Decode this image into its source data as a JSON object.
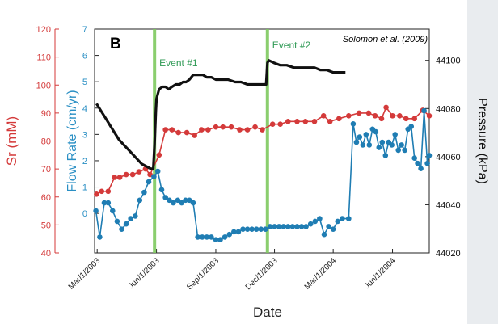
{
  "chart_data": {
    "type": "line",
    "panel_label": "B",
    "citation": "Solomon et al. (2009)",
    "xlabel": "Date",
    "x_ticks": [
      "Mar/1/2003",
      "Jun/1/2003",
      "Sep/1/2003",
      "Dec/1/2003",
      "Mar/1/2004",
      "Jun/1/2004"
    ],
    "xlim": [
      "2003-02-25",
      "2004-07-28"
    ],
    "axes": {
      "sr": {
        "label": "Sr (mM)",
        "ticks": [
          "40",
          "50",
          "60",
          "70",
          "80",
          "90",
          "100",
          "110",
          "120"
        ],
        "range": [
          40,
          120
        ],
        "color": "#d43a3a"
      },
      "flow": {
        "label": "Flow Rate (cm/yr)",
        "ticks": [
          "0",
          "1",
          "2",
          "3",
          "4",
          "5",
          "6",
          "7"
        ],
        "range": [
          -1.5,
          7
        ],
        "color": "#2a8fc4"
      },
      "pressure": {
        "label": "Pressure (kPa)",
        "ticks": [
          "44020",
          "44040",
          "44060",
          "44080",
          "44100"
        ],
        "range": [
          44020,
          44113
        ],
        "color": "#111111"
      }
    },
    "events": [
      {
        "label": "Event #1",
        "date": "2003-05-29",
        "color": "#7dc95e"
      },
      {
        "label": "Event #2",
        "date": "2003-11-20",
        "color": "#7dc95e"
      }
    ],
    "series": [
      {
        "name": "Sr",
        "axis": "sr",
        "color": "#d43a3a",
        "markers": true,
        "points": [
          [
            "2003-02-28",
            61
          ],
          [
            "2003-03-08",
            62
          ],
          [
            "2003-03-18",
            62
          ],
          [
            "2003-03-28",
            67
          ],
          [
            "2003-04-05",
            67
          ],
          [
            "2003-04-15",
            68
          ],
          [
            "2003-04-25",
            68
          ],
          [
            "2003-05-05",
            69
          ],
          [
            "2003-05-15",
            70
          ],
          [
            "2003-05-22",
            68
          ],
          [
            "2003-06-05",
            75
          ],
          [
            "2003-06-15",
            84
          ],
          [
            "2003-06-25",
            84
          ],
          [
            "2003-07-05",
            83
          ],
          [
            "2003-07-18",
            83
          ],
          [
            "2003-07-30",
            82
          ],
          [
            "2003-08-10",
            84
          ],
          [
            "2003-08-20",
            84
          ],
          [
            "2003-09-01",
            85
          ],
          [
            "2003-09-12",
            85
          ],
          [
            "2003-09-25",
            85
          ],
          [
            "2003-10-08",
            84
          ],
          [
            "2003-10-20",
            84
          ],
          [
            "2003-11-01",
            85
          ],
          [
            "2003-11-12",
            84
          ],
          [
            "2003-11-28",
            86
          ],
          [
            "2003-12-10",
            86
          ],
          [
            "2003-12-22",
            87
          ],
          [
            "2004-01-05",
            87
          ],
          [
            "2004-01-18",
            87
          ],
          [
            "2004-02-01",
            87
          ],
          [
            "2004-02-15",
            89
          ],
          [
            "2004-02-25",
            87
          ],
          [
            "2004-03-10",
            88
          ],
          [
            "2004-03-25",
            89
          ],
          [
            "2004-04-10",
            90
          ],
          [
            "2004-04-25",
            90
          ],
          [
            "2004-05-05",
            89
          ],
          [
            "2004-05-15",
            88
          ],
          [
            "2004-05-22",
            92
          ],
          [
            "2004-06-01",
            89
          ],
          [
            "2004-06-12",
            89
          ],
          [
            "2004-06-22",
            88
          ],
          [
            "2004-07-05",
            88
          ],
          [
            "2004-07-18",
            91
          ],
          [
            "2004-07-28",
            89
          ]
        ]
      },
      {
        "name": "Flow Rate",
        "axis": "flow",
        "color": "#1f7db3",
        "markers": true,
        "points": [
          [
            "2003-02-27",
            0.1
          ],
          [
            "2003-03-05",
            -0.9
          ],
          [
            "2003-03-12",
            0.4
          ],
          [
            "2003-03-18",
            0.4
          ],
          [
            "2003-03-25",
            0.1
          ],
          [
            "2003-04-01",
            -0.3
          ],
          [
            "2003-04-08",
            -0.6
          ],
          [
            "2003-04-15",
            -0.4
          ],
          [
            "2003-04-22",
            -0.2
          ],
          [
            "2003-04-29",
            -0.1
          ],
          [
            "2003-05-06",
            0.5
          ],
          [
            "2003-05-13",
            0.8
          ],
          [
            "2003-05-20",
            1.2
          ],
          [
            "2003-05-28",
            1.4
          ],
          [
            "2003-06-03",
            1.6
          ],
          [
            "2003-06-09",
            0.9
          ],
          [
            "2003-06-15",
            0.6
          ],
          [
            "2003-06-21",
            0.5
          ],
          [
            "2003-06-27",
            0.4
          ],
          [
            "2003-07-04",
            0.5
          ],
          [
            "2003-07-10",
            0.4
          ],
          [
            "2003-07-16",
            0.5
          ],
          [
            "2003-07-22",
            0.5
          ],
          [
            "2003-07-28",
            0.4
          ],
          [
            "2003-08-04",
            -0.9
          ],
          [
            "2003-08-11",
            -0.9
          ],
          [
            "2003-08-18",
            -0.9
          ],
          [
            "2003-08-25",
            -0.9
          ],
          [
            "2003-09-01",
            -1.0
          ],
          [
            "2003-09-08",
            -1.0
          ],
          [
            "2003-09-15",
            -0.9
          ],
          [
            "2003-09-22",
            -0.8
          ],
          [
            "2003-09-29",
            -0.7
          ],
          [
            "2003-10-06",
            -0.7
          ],
          [
            "2003-10-13",
            -0.6
          ],
          [
            "2003-10-20",
            -0.6
          ],
          [
            "2003-10-27",
            -0.6
          ],
          [
            "2003-11-03",
            -0.6
          ],
          [
            "2003-11-10",
            -0.6
          ],
          [
            "2003-11-17",
            -0.6
          ],
          [
            "2003-11-24",
            -0.5
          ],
          [
            "2003-12-01",
            -0.5
          ],
          [
            "2003-12-08",
            -0.5
          ],
          [
            "2003-12-15",
            -0.5
          ],
          [
            "2003-12-22",
            -0.5
          ],
          [
            "2003-12-29",
            -0.5
          ],
          [
            "2004-01-05",
            -0.5
          ],
          [
            "2004-01-12",
            -0.5
          ],
          [
            "2004-01-19",
            -0.5
          ],
          [
            "2004-01-26",
            -0.4
          ],
          [
            "2004-02-02",
            -0.3
          ],
          [
            "2004-02-09",
            -0.2
          ],
          [
            "2004-02-16",
            -0.8
          ],
          [
            "2004-02-23",
            -0.5
          ],
          [
            "2004-03-01",
            -0.6
          ],
          [
            "2004-03-08",
            -0.3
          ],
          [
            "2004-03-15",
            -0.2
          ],
          [
            "2004-03-25",
            -0.2
          ],
          [
            "2004-04-01",
            3.4
          ],
          [
            "2004-04-06",
            2.7
          ],
          [
            "2004-04-11",
            2.9
          ],
          [
            "2004-04-16",
            2.6
          ],
          [
            "2004-04-21",
            3.0
          ],
          [
            "2004-04-26",
            2.6
          ],
          [
            "2004-05-01",
            3.2
          ],
          [
            "2004-05-06",
            3.1
          ],
          [
            "2004-05-11",
            2.5
          ],
          [
            "2004-05-16",
            2.7
          ],
          [
            "2004-05-21",
            2.2
          ],
          [
            "2004-05-26",
            2.7
          ],
          [
            "2004-05-31",
            2.6
          ],
          [
            "2004-06-05",
            3.0
          ],
          [
            "2004-06-10",
            2.4
          ],
          [
            "2004-06-15",
            2.6
          ],
          [
            "2004-06-20",
            2.4
          ],
          [
            "2004-06-25",
            3.2
          ],
          [
            "2004-06-30",
            3.3
          ],
          [
            "2004-07-05",
            2.1
          ],
          [
            "2004-07-10",
            1.9
          ],
          [
            "2004-07-15",
            1.7
          ],
          [
            "2004-07-20",
            3.9
          ],
          [
            "2004-07-25",
            1.9
          ],
          [
            "2004-07-28",
            2.2
          ]
        ]
      },
      {
        "name": "Pressure",
        "axis": "pressure",
        "color": "#111111",
        "markers": false,
        "points": [
          [
            "2003-02-28",
            44082
          ],
          [
            "2003-03-07",
            44079
          ],
          [
            "2003-03-14",
            44076
          ],
          [
            "2003-03-21",
            44073
          ],
          [
            "2003-03-28",
            44070
          ],
          [
            "2003-04-04",
            44067
          ],
          [
            "2003-04-11",
            44065
          ],
          [
            "2003-04-18",
            44063
          ],
          [
            "2003-04-25",
            44061
          ],
          [
            "2003-05-02",
            44059
          ],
          [
            "2003-05-09",
            44057
          ],
          [
            "2003-05-16",
            44056
          ],
          [
            "2003-05-23",
            44055
          ],
          [
            "2003-05-27",
            44055
          ],
          [
            "2003-05-28",
            44060
          ],
          [
            "2003-05-29",
            44065
          ],
          [
            "2003-05-30",
            44072
          ],
          [
            "2003-05-31",
            44079
          ],
          [
            "2003-06-01",
            44084
          ],
          [
            "2003-06-04",
            44087
          ],
          [
            "2003-06-05",
            44088
          ],
          [
            "2003-06-10",
            44089
          ],
          [
            "2003-06-15",
            44089
          ],
          [
            "2003-06-20",
            44088
          ],
          [
            "2003-06-25",
            44089
          ],
          [
            "2003-07-01",
            44090
          ],
          [
            "2003-07-07",
            44090
          ],
          [
            "2003-07-12",
            44091
          ],
          [
            "2003-07-17",
            44091
          ],
          [
            "2003-07-22",
            44092
          ],
          [
            "2003-07-28",
            44094
          ],
          [
            "2003-08-05",
            44094
          ],
          [
            "2003-08-12",
            44094
          ],
          [
            "2003-08-18",
            44093
          ],
          [
            "2003-08-25",
            44093
          ],
          [
            "2003-09-01",
            44092
          ],
          [
            "2003-09-10",
            44092
          ],
          [
            "2003-09-20",
            44092
          ],
          [
            "2003-10-01",
            44091
          ],
          [
            "2003-10-10",
            44091
          ],
          [
            "2003-10-20",
            44090
          ],
          [
            "2003-11-01",
            44090
          ],
          [
            "2003-11-10",
            44090
          ],
          [
            "2003-11-18",
            44090
          ],
          [
            "2003-11-20",
            44099
          ],
          [
            "2003-11-22",
            44100
          ],
          [
            "2003-11-30",
            44099
          ],
          [
            "2003-12-10",
            44098
          ],
          [
            "2003-12-20",
            44098
          ],
          [
            "2003-12-31",
            44097
          ],
          [
            "2004-01-10",
            44097
          ],
          [
            "2004-01-20",
            44097
          ],
          [
            "2004-02-01",
            44097
          ],
          [
            "2004-02-10",
            44096
          ],
          [
            "2004-02-20",
            44096
          ],
          [
            "2004-03-01",
            44095
          ],
          [
            "2004-03-10",
            44095
          ],
          [
            "2004-03-20",
            44095
          ]
        ]
      }
    ]
  }
}
